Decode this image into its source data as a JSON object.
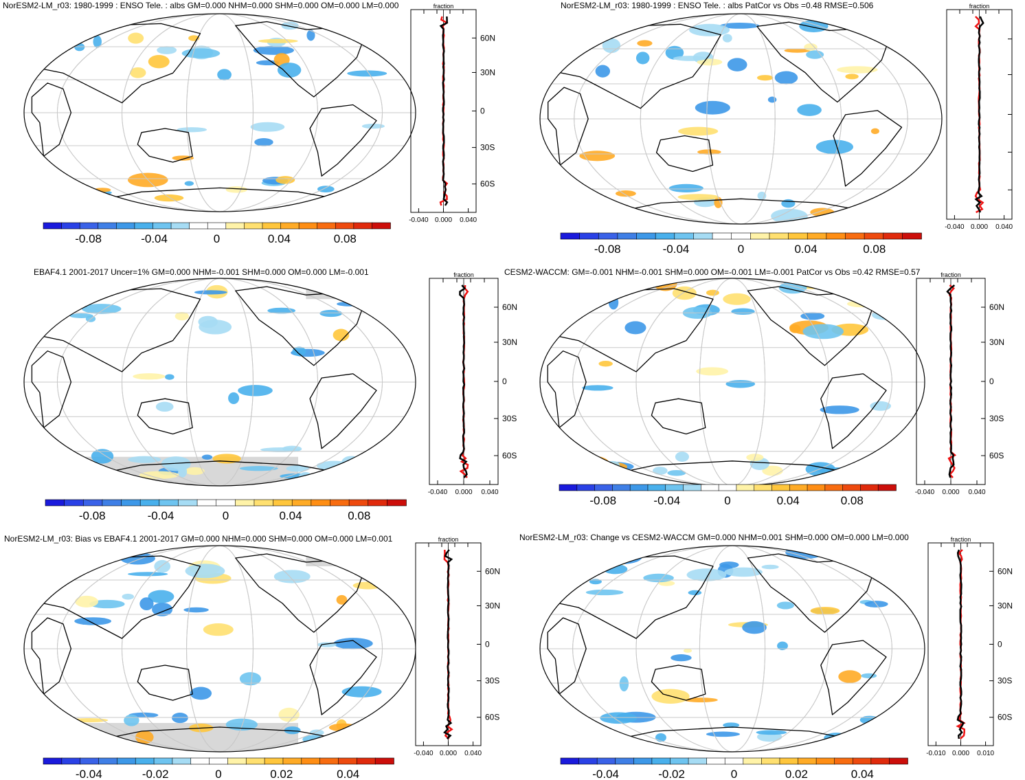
{
  "panels": [
    {
      "id": "p1",
      "title": "NorESM2-LM_r03: 1980-1999 : ENSO Tele. : albs GM=0.000 NHM=0.000 SHM=0.000 OM=0.000 LM=0.000",
      "zonal_label": "fraction",
      "lat_labels": [
        "60N",
        "30N",
        "0",
        "30S",
        "60S"
      ],
      "zonal_ticks": [
        "-0.040",
        "0.000",
        "0.040"
      ],
      "colorbar_ticks": [
        "-0.08",
        "-0.04",
        "0",
        "0.04",
        "0.08"
      ],
      "land_mask": false
    },
    {
      "id": "p2",
      "title": "NorESM2-LM_r03: 1980-1999 : ENSO Tele. : albs PatCor vs Obs =0.48 RMSE=0.506",
      "zonal_label": "fraction",
      "lat_labels": [],
      "zonal_ticks": [
        "-0.040",
        "0.000",
        "0.040"
      ],
      "colorbar_ticks": [
        "-0.08",
        "-0.04",
        "0",
        "0.04",
        "0.08"
      ],
      "land_mask": false
    },
    {
      "id": "p3",
      "title": "EBAF4.1 2001-2017 Uncer=1% GM=0.000 NHM=-0.001 SHM=0.000 OM=0.000 LM=-0.001",
      "zonal_label": "fraction",
      "lat_labels": [
        "60N",
        "30N",
        "0",
        "30S",
        "60S"
      ],
      "zonal_ticks": [
        "-0.040",
        "0.000",
        "0.040"
      ],
      "colorbar_ticks": [
        "-0.08",
        "-0.04",
        "0",
        "0.04",
        "0.08"
      ],
      "land_mask": true
    },
    {
      "id": "p4",
      "title": "CESM2-WACCM: GM=-0.001 NHM=-0.001 SHM=0.000 OM=-0.001 LM=-0.001 PatCor vs Obs =0.42 RMSE=0.57",
      "zonal_label": "fraction",
      "lat_labels": [
        "60N",
        "30N",
        "0",
        "30S",
        "60S"
      ],
      "zonal_ticks": [
        "-0.040",
        "0.000",
        "0.040"
      ],
      "colorbar_ticks": [
        "-0.08",
        "-0.04",
        "0",
        "0.04",
        "0.08"
      ],
      "land_mask": false
    },
    {
      "id": "p5",
      "title": "NorESM2-LM_r03: Bias vs EBAF4.1 2001-2017 GM=0.000 NHM=0.000 SHM=0.000 OM=0.000 LM=0.001",
      "zonal_label": "fraction",
      "lat_labels": [
        "60N",
        "30N",
        "0",
        "30S",
        "60S"
      ],
      "zonal_ticks": [
        "-0.040",
        "0.000",
        "0.040"
      ],
      "colorbar_ticks": [
        "-0.04",
        "-0.02",
        "0",
        "0.02",
        "0.04"
      ],
      "land_mask": true
    },
    {
      "id": "p6",
      "title": "NorESM2-LM_r03: Change vs CESM2-WACCM GM=0.000 NHM=0.001 SHM=0.000 OM=0.000 LM=0.000",
      "zonal_label": "fraction",
      "lat_labels": [
        "60N",
        "30N",
        "0",
        "30S",
        "60S"
      ],
      "zonal_ticks": [
        "-0.010",
        "0.000",
        "0.010"
      ],
      "colorbar_ticks": [
        "-0.04",
        "-0.02",
        "0",
        "0.02",
        "0.04"
      ],
      "land_mask": false
    }
  ],
  "colorbar_colors": [
    "#1a1adc",
    "#2a41e6",
    "#3a62e8",
    "#3f7fe6",
    "#3d98e8",
    "#49b0ec",
    "#6ec4f0",
    "#a6dcf4",
    "#ffffff",
    "#ffffff",
    "#fff3a8",
    "#ffe070",
    "#ffc63c",
    "#ffab26",
    "#ff8e14",
    "#f86c10",
    "#ee4a0e",
    "#e02a0c",
    "#cc0e0a"
  ],
  "zonal_line_colors": {
    "obs_or_model1": "#000000",
    "red_series": "#ee1111",
    "blue_series": "#1133dd"
  }
}
